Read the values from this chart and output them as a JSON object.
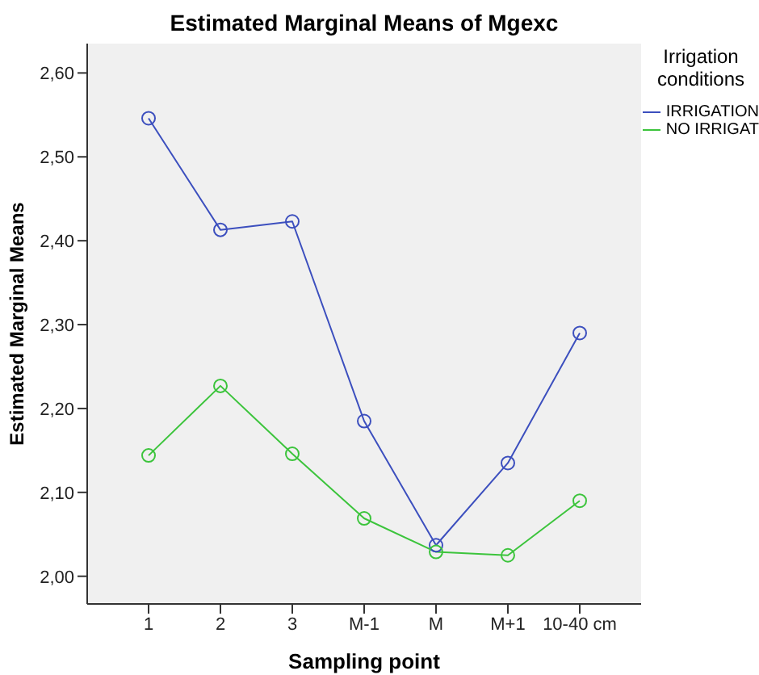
{
  "chart_data": {
    "type": "line",
    "title": "Estimated Marginal Means of Mgexc",
    "xlabel": "Sampling point",
    "ylabel": "Estimated Marginal Means",
    "legend_title": "Irrigation conditions",
    "categories": [
      "1",
      "2",
      "3",
      "M-1",
      "M",
      "M+1",
      "10-40 cm"
    ],
    "series": [
      {
        "name": "IRRIGATION",
        "color": "#3c4fbe",
        "values": [
          2.546,
          2.413,
          2.423,
          2.185,
          2.037,
          2.135,
          2.29
        ]
      },
      {
        "name": "NO IRRIGAT",
        "color": "#3cc43c",
        "values": [
          2.144,
          2.227,
          2.146,
          2.069,
          2.029,
          2.025,
          2.09
        ]
      }
    ],
    "ylim": [
      1.967,
      2.635
    ],
    "yticks": [
      {
        "value": 2.0,
        "label": "2,00"
      },
      {
        "value": 2.1,
        "label": "2,10"
      },
      {
        "value": 2.2,
        "label": "2,20"
      },
      {
        "value": 2.3,
        "label": "2,30"
      },
      {
        "value": 2.4,
        "label": "2,40"
      },
      {
        "value": 2.5,
        "label": "2,50"
      },
      {
        "value": 2.6,
        "label": "2,60"
      }
    ],
    "grid": false,
    "legend": "right",
    "marker": "circle",
    "line_style": "solid"
  }
}
